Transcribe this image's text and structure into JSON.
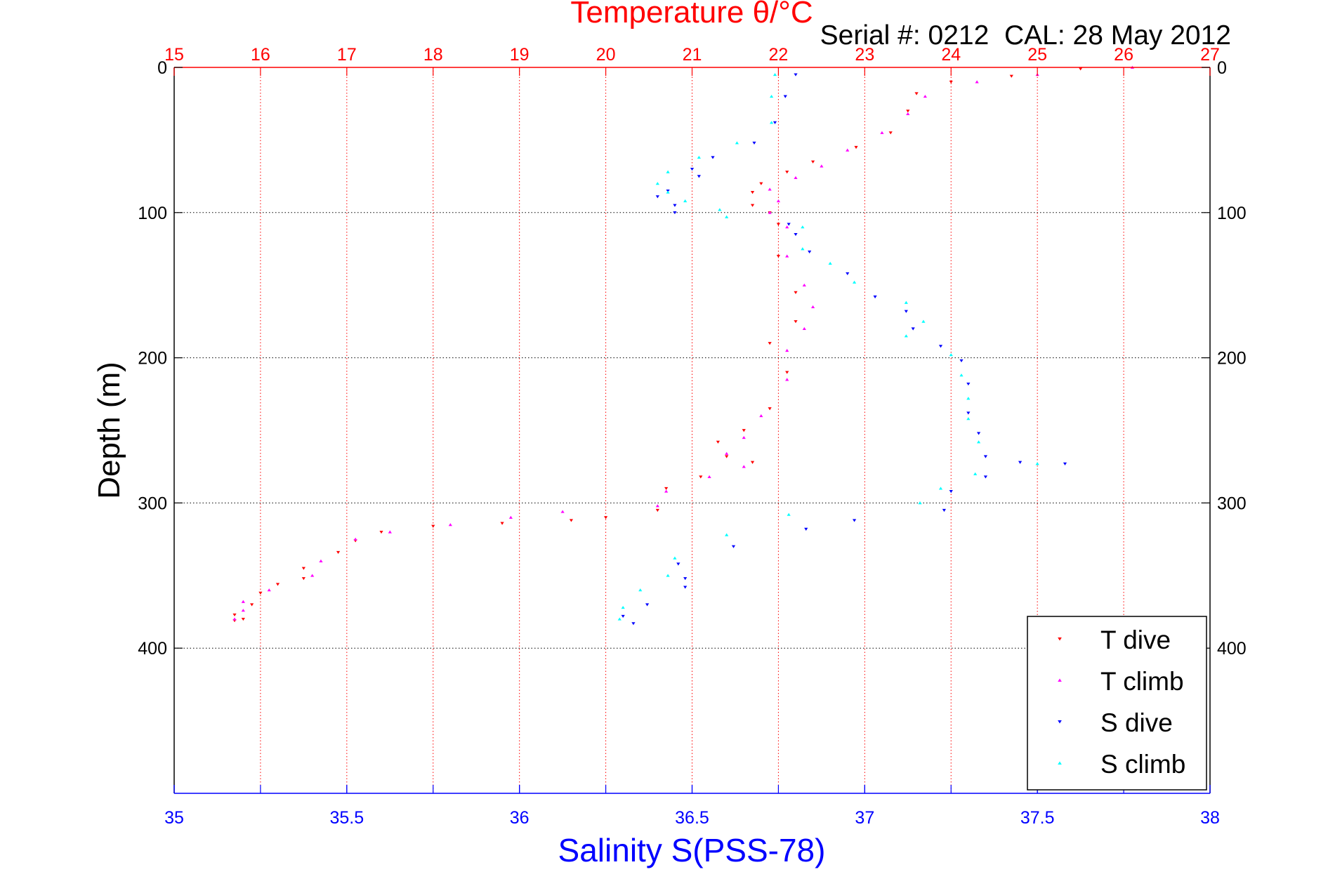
{
  "chart_data": {
    "type": "scatter",
    "title": "Temperature θ/°C",
    "subtitle": "Serial #: 0212  CAL: 28 May 2012",
    "xlabel": "Salinity S(PSS-78)",
    "ylabel": "Depth (m)",
    "x_top": {
      "label": "Temperature θ/°C",
      "lim": [
        15,
        27
      ],
      "ticks": [
        15,
        16,
        17,
        18,
        19,
        20,
        21,
        22,
        23,
        24,
        25,
        26,
        27
      ],
      "color": "#ff0000"
    },
    "x_bottom": {
      "label": "Salinity S(PSS-78)",
      "lim": [
        35,
        38
      ],
      "ticks": [
        "35",
        "35.5",
        "36",
        "36.5",
        "37",
        "37.5",
        "38"
      ],
      "color": "#0000ff"
    },
    "ylim": [
      0,
      500
    ],
    "y_ticks": [
      0,
      100,
      200,
      300,
      400
    ],
    "grid": true,
    "legend_position": "bottom-right",
    "series": [
      {
        "name": "T dive",
        "axis": "temperature",
        "color": "#ff0000",
        "marker": "triangle-down",
        "points": [
          [
            25.5,
            1
          ],
          [
            24.7,
            6
          ],
          [
            24.0,
            10
          ],
          [
            23.6,
            18
          ],
          [
            23.5,
            30
          ],
          [
            23.3,
            45
          ],
          [
            22.9,
            55
          ],
          [
            22.4,
            65
          ],
          [
            22.1,
            72
          ],
          [
            21.8,
            80
          ],
          [
            21.7,
            86
          ],
          [
            21.7,
            95
          ],
          [
            21.9,
            100
          ],
          [
            22.0,
            108
          ],
          [
            22.0,
            130
          ],
          [
            22.2,
            155
          ],
          [
            22.2,
            175
          ],
          [
            21.9,
            190
          ],
          [
            22.1,
            210
          ],
          [
            21.9,
            235
          ],
          [
            21.6,
            250
          ],
          [
            21.3,
            258
          ],
          [
            21.4,
            268
          ],
          [
            21.7,
            272
          ],
          [
            21.1,
            282
          ],
          [
            20.7,
            290
          ],
          [
            20.6,
            305
          ],
          [
            20.0,
            310
          ],
          [
            19.6,
            312
          ],
          [
            18.8,
            314
          ],
          [
            18.0,
            316
          ],
          [
            17.4,
            320
          ],
          [
            17.1,
            326
          ],
          [
            16.9,
            334
          ],
          [
            16.5,
            345
          ],
          [
            16.5,
            352
          ],
          [
            16.2,
            356
          ],
          [
            16.0,
            362
          ],
          [
            15.9,
            370
          ],
          [
            15.7,
            377
          ],
          [
            15.8,
            380
          ],
          [
            15.7,
            381
          ]
        ]
      },
      {
        "name": "T climb",
        "axis": "temperature",
        "color": "#ff00ff",
        "marker": "triangle-up",
        "points": [
          [
            26.1,
            0
          ],
          [
            25.0,
            5
          ],
          [
            24.3,
            10
          ],
          [
            23.7,
            20
          ],
          [
            23.5,
            32
          ],
          [
            23.2,
            45
          ],
          [
            22.8,
            57
          ],
          [
            22.5,
            68
          ],
          [
            22.2,
            76
          ],
          [
            21.9,
            84
          ],
          [
            22.0,
            92
          ],
          [
            21.9,
            100
          ],
          [
            22.1,
            110
          ],
          [
            22.1,
            130
          ],
          [
            22.3,
            150
          ],
          [
            22.4,
            165
          ],
          [
            22.3,
            180
          ],
          [
            22.1,
            195
          ],
          [
            22.1,
            215
          ],
          [
            21.8,
            240
          ],
          [
            21.6,
            255
          ],
          [
            21.4,
            266
          ],
          [
            21.6,
            275
          ],
          [
            21.2,
            282
          ],
          [
            20.7,
            292
          ],
          [
            20.6,
            302
          ],
          [
            19.5,
            306
          ],
          [
            18.9,
            310
          ],
          [
            18.2,
            315
          ],
          [
            17.5,
            320
          ],
          [
            17.1,
            325
          ],
          [
            16.7,
            340
          ],
          [
            16.6,
            350
          ],
          [
            16.1,
            360
          ],
          [
            15.8,
            368
          ],
          [
            15.8,
            374
          ],
          [
            15.7,
            380
          ]
        ]
      },
      {
        "name": "S dive",
        "axis": "salinity",
        "color": "#0000ff",
        "marker": "triangle-down",
        "points": [
          [
            36.8,
            5
          ],
          [
            36.77,
            20
          ],
          [
            36.74,
            38
          ],
          [
            36.68,
            52
          ],
          [
            36.56,
            62
          ],
          [
            36.5,
            70
          ],
          [
            36.52,
            75
          ],
          [
            36.43,
            85
          ],
          [
            36.4,
            89
          ],
          [
            36.45,
            95
          ],
          [
            36.45,
            100
          ],
          [
            36.78,
            108
          ],
          [
            36.8,
            115
          ],
          [
            36.84,
            127
          ],
          [
            36.95,
            142
          ],
          [
            37.03,
            158
          ],
          [
            37.12,
            168
          ],
          [
            37.14,
            180
          ],
          [
            37.22,
            192
          ],
          [
            37.28,
            202
          ],
          [
            37.3,
            218
          ],
          [
            37.3,
            238
          ],
          [
            37.33,
            252
          ],
          [
            37.35,
            268
          ],
          [
            37.45,
            272
          ],
          [
            37.58,
            273
          ],
          [
            37.35,
            282
          ],
          [
            37.25,
            292
          ],
          [
            37.23,
            305
          ],
          [
            36.97,
            312
          ],
          [
            36.83,
            318
          ],
          [
            36.62,
            330
          ],
          [
            36.46,
            342
          ],
          [
            36.48,
            352
          ],
          [
            36.48,
            358
          ],
          [
            36.37,
            370
          ],
          [
            36.3,
            378
          ],
          [
            36.33,
            383
          ]
        ]
      },
      {
        "name": "S climb",
        "axis": "salinity",
        "color": "#00ffff",
        "marker": "triangle-up",
        "points": [
          [
            36.74,
            5
          ],
          [
            36.73,
            20
          ],
          [
            36.73,
            38
          ],
          [
            36.63,
            52
          ],
          [
            36.52,
            62
          ],
          [
            36.43,
            72
          ],
          [
            36.4,
            80
          ],
          [
            36.43,
            86
          ],
          [
            36.48,
            92
          ],
          [
            36.58,
            98
          ],
          [
            36.6,
            103
          ],
          [
            36.82,
            110
          ],
          [
            36.82,
            125
          ],
          [
            36.9,
            135
          ],
          [
            36.97,
            148
          ],
          [
            37.12,
            162
          ],
          [
            37.17,
            175
          ],
          [
            37.12,
            185
          ],
          [
            37.25,
            198
          ],
          [
            37.28,
            212
          ],
          [
            37.3,
            228
          ],
          [
            37.3,
            242
          ],
          [
            37.33,
            258
          ],
          [
            37.5,
            273
          ],
          [
            37.32,
            280
          ],
          [
            37.22,
            290
          ],
          [
            37.16,
            300
          ],
          [
            36.78,
            308
          ],
          [
            36.6,
            322
          ],
          [
            36.45,
            338
          ],
          [
            36.43,
            350
          ],
          [
            36.35,
            360
          ],
          [
            36.3,
            372
          ],
          [
            36.29,
            380
          ]
        ]
      }
    ]
  }
}
